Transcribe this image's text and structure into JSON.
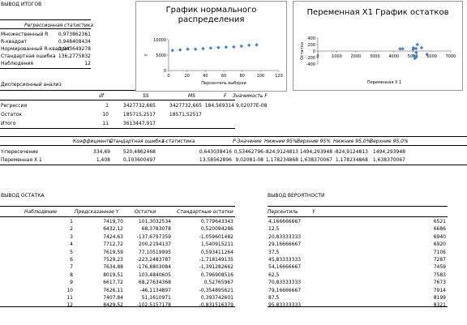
{
  "header": {
    "title": "ВЫВОД ИТОГОВ"
  },
  "regression_stats": {
    "title": "Регрессионная статистика",
    "rows": [
      {
        "label": "Множественный R",
        "value": "0,973862361"
      },
      {
        "label": "R-квадрат",
        "value": "0,948408434"
      },
      {
        "label": "Нормированный R-квадрат",
        "value": "0,943649278"
      },
      {
        "label": "Стандартная ошибка",
        "value": "136,2775832"
      },
      {
        "label": "Наблюдения",
        "value": "12"
      }
    ]
  },
  "anova": {
    "title": "Дисперсионный анализ",
    "headers": [
      "df",
      "SS",
      "MS",
      "F",
      "Значимость F"
    ],
    "rows": [
      {
        "label": "Регрессия",
        "df": "1",
        "ss": "3427732,665",
        "ms": "3427732,665",
        "f": "184,569314",
        "sig": "9,02077E-08"
      },
      {
        "label": "Остаток",
        "df": "10",
        "ss": "185715,2517",
        "ms": "18571,52517",
        "f": "",
        "sig": ""
      },
      {
        "label": "Итого",
        "df": "11",
        "ss": "3613447,917",
        "ms": "",
        "f": "",
        "sig": ""
      }
    ]
  },
  "coefficients": {
    "headers": [
      "Коэффициенты",
      "Стандартная ошибка",
      "t-статистика",
      "P-Значение",
      "Нижние 95%",
      "Верхние 95%",
      "Нижние 95,0%",
      "Верхние 95,0%"
    ],
    "rows": [
      {
        "label": "Y-пересечение",
        "values": [
          "334,69",
          "520,4862468",
          "0,643038416",
          "0,53462796",
          "-824,9124813",
          "1494,293948",
          "-824,9124813",
          "1494,293948"
        ]
      },
      {
        "label": "Переменная X 1",
        "values": [
          "1,408",
          "0,103600497",
          "13,58562896",
          "9,02081-08",
          "1,178234868",
          "1,638370067",
          "1,178234868",
          "1,638370067"
        ]
      }
    ]
  },
  "residuals": {
    "title": "ВЫВОД ОСТАТКА",
    "headers": [
      "Наблюдение",
      "Предсказанное Y",
      "Остатки",
      "Стандартные остатки"
    ],
    "rows": [
      [
        "1",
        "7419,70",
        "101,3032534",
        "0,779643343"
      ],
      [
        "2",
        "6432,12",
        "68,3783078",
        "0,520094286"
      ],
      [
        "3",
        "7424,63",
        "-137,6797359",
        "-1,059601482"
      ],
      [
        "4",
        "7712,72",
        "200,2194137",
        "1,540915211"
      ],
      [
        "5",
        "7619,59",
        "77,10519995",
        "0,593411264"
      ],
      [
        "6",
        "7529,23",
        "-223,2483787",
        "-1,718149135"
      ],
      [
        "7",
        "7634,88",
        "-176,8803084",
        "-1,391282662"
      ],
      [
        "8",
        "8019,51",
        "103,4840605",
        "0,796908516"
      ],
      [
        "9",
        "6617,72",
        "68,27634368",
        "0,52765967"
      ],
      [
        "10",
        "7626,11",
        "-46,1134897",
        "-0,354895621"
      ],
      [
        "11",
        "7407,84",
        "51,1610971",
        "0,393742601"
      ],
      [
        "12",
        "8429,52",
        "-102,5157178",
        "-0,831516379"
      ]
    ]
  },
  "probability": {
    "title": "ВЫВОД ВЕРОЯТНОСТИ",
    "headers": [
      "Персентиль",
      "Y"
    ],
    "rows": [
      [
        "4,166666667",
        "6521"
      ],
      [
        "12,5",
        "6686"
      ],
      [
        "20,83333333",
        "6940"
      ],
      [
        "29,16666667",
        "6920"
      ],
      [
        "37,5",
        "7106"
      ],
      [
        "45,83333333",
        "7287"
      ],
      [
        "54,16666667",
        "7459"
      ],
      [
        "62,5",
        "7583"
      ],
      [
        "70,83333333",
        "7673"
      ],
      [
        "79,16666667",
        "7914"
      ],
      [
        "87,5",
        "8199"
      ],
      [
        "95,83333333",
        "8321"
      ]
    ]
  },
  "chart_data": [
    {
      "type": "scatter",
      "title": "График нормального распределения",
      "xlabel": "Персентиль выборки",
      "ylabel": "Y",
      "xlim": [
        0,
        120
      ],
      "ylim": [
        0,
        10000
      ],
      "xticks": [
        0,
        20,
        40,
        60,
        80,
        100,
        120
      ],
      "yticks": [
        0,
        5000,
        10000
      ],
      "color": "#4a7ebb",
      "x": [
        4.17,
        12.5,
        20.83,
        29.17,
        37.5,
        45.83,
        54.17,
        62.5,
        70.83,
        79.17,
        87.5,
        95.83
      ],
      "y": [
        6521,
        6686,
        6940,
        6920,
        7106,
        7287,
        7459,
        7583,
        7673,
        7914,
        8199,
        8321
      ]
    },
    {
      "type": "scatter",
      "title": "Переменная X1 График остатков",
      "xlabel": "Переменная X 1",
      "ylabel": "Остатки",
      "xlim": [
        0,
        7000
      ],
      "ylim": [
        -400,
        400
      ],
      "xticks": [
        0,
        1000,
        2000,
        3000,
        4000,
        5000,
        6000,
        7000
      ],
      "yticks": [
        -400,
        -200,
        0,
        200,
        400
      ],
      "color": "#4a7ebb",
      "x": [
        5030,
        4330,
        5040,
        5240,
        5170,
        5110,
        5190,
        5460,
        4460,
        5180,
        5020,
        5750
      ],
      "y": [
        101,
        68,
        -138,
        200,
        77,
        -223,
        -177,
        103,
        68,
        -46,
        51,
        -103
      ]
    }
  ]
}
